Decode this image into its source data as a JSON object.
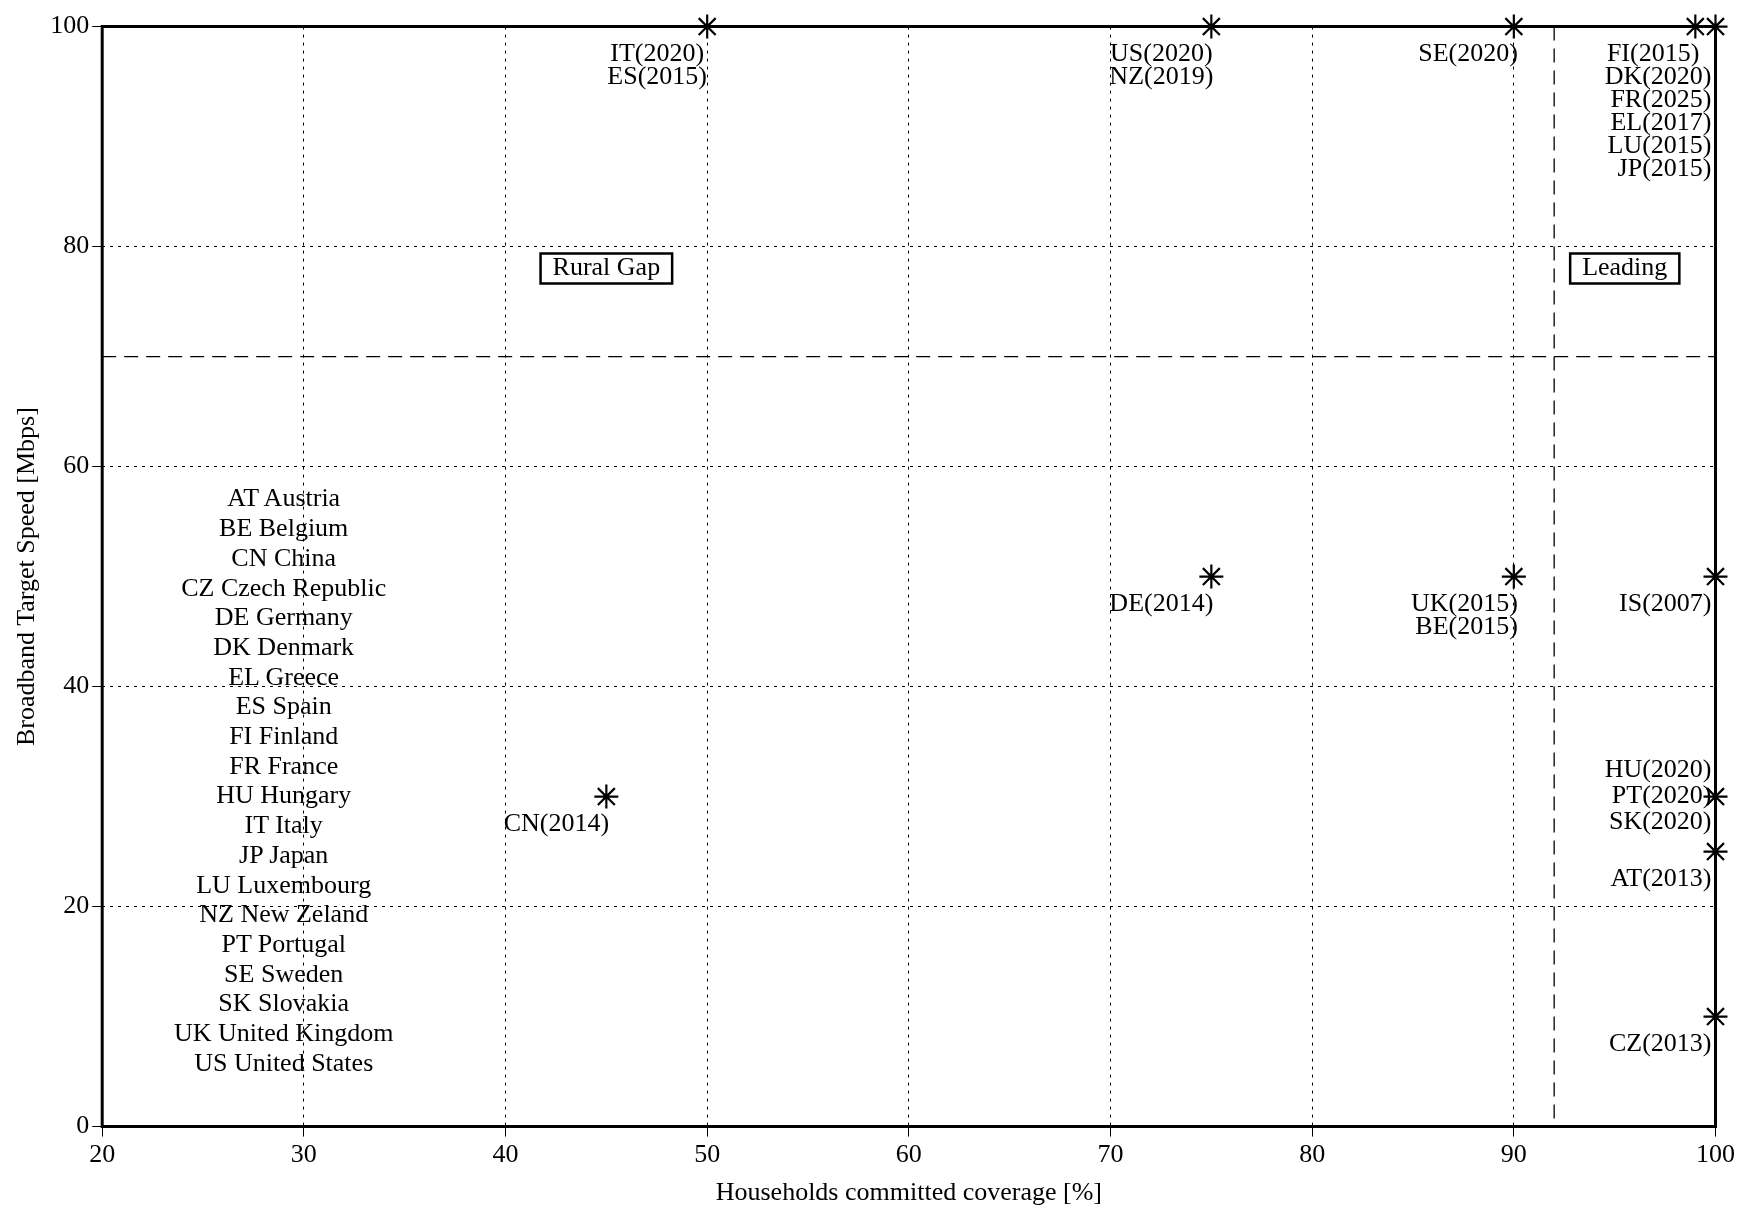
{
  "chart_data": {
    "type": "scatter",
    "xlabel": "Households committed coverage [%]",
    "ylabel": "Broadband Target Speed [Mbps]",
    "series": [
      {
        "color": "#000000",
        "x": [
          50,
          75,
          90,
          99,
          100,
          45,
          75,
          90,
          100,
          100,
          100,
          100
        ],
        "values": [
          100,
          100,
          100,
          100,
          100,
          30,
          50,
          50,
          50,
          30,
          25,
          10
        ]
      }
    ],
    "xlim": [
      20,
      100
    ],
    "xticks": [
      20,
      30,
      40,
      50,
      60,
      70,
      80,
      90,
      100
    ],
    "ylim": [
      0,
      100
    ],
    "yticks": [
      0,
      20,
      40,
      60,
      80,
      100
    ],
    "grid": true,
    "marker": "cross",
    "legend": false,
    "ref_lines": [
      {
        "axis": "y",
        "value": 70,
        "color": "#000000",
        "line_style": "dashed"
      },
      {
        "axis": "x",
        "value": 92,
        "color": "#000000",
        "line_style": "dashed"
      }
    ],
    "annotations": [
      {
        "text": "IT(2020)",
        "x": 50,
        "y": 100
      },
      {
        "text": "ES(2015)",
        "x": 50,
        "y": 100
      },
      {
        "text": "US(2020)",
        "x": 75,
        "y": 100
      },
      {
        "text": "NZ(2019)",
        "x": 75,
        "y": 100
      },
      {
        "text": "SE(2020)",
        "x": 90,
        "y": 100
      },
      {
        "text": "FI(2015)",
        "x": 99,
        "y": 100
      },
      {
        "text": "DK(2020)\nFR(2025)\nEL(2017)\nLU(2015)\nJP(2015)",
        "x": 100,
        "y": 100
      },
      {
        "text": "CN(2014)",
        "x": 45,
        "y": 30
      },
      {
        "text": "DE(2014)",
        "x": 75,
        "y": 50
      },
      {
        "text": "UK(2015)",
        "x": 90,
        "y": 50
      },
      {
        "text": "BE(2015)",
        "x": 90,
        "y": 50
      },
      {
        "text": "IS(2007)",
        "x": 100,
        "y": 50
      },
      {
        "text": "HU(2020)",
        "x": 100,
        "y": 30
      },
      {
        "text": "PT(2020)",
        "x": 100,
        "y": 30
      },
      {
        "text": "SK(2020)",
        "x": 100,
        "y": 30
      },
      {
        "text": "AT(2013)",
        "x": 100,
        "y": 25
      },
      {
        "text": "CZ(2013)",
        "x": 100,
        "y": 10
      },
      "Rural Gap",
      "Leading",
      "AT Austria",
      "BE Belgium",
      "CN China",
      "CZ Czech Republic",
      "DE Germany",
      "DK Denmark",
      "EL Greece",
      "ES Spain",
      "FI Finland",
      "FR France",
      "HU Hungary",
      "IT Italy",
      "JP Japan",
      "LU Luxembourg",
      "NZ New Zeland",
      "PT Portugal",
      "SE Sweden",
      "SK Slovakia",
      "UK United Kingdom",
      "US United States"
    ]
  }
}
